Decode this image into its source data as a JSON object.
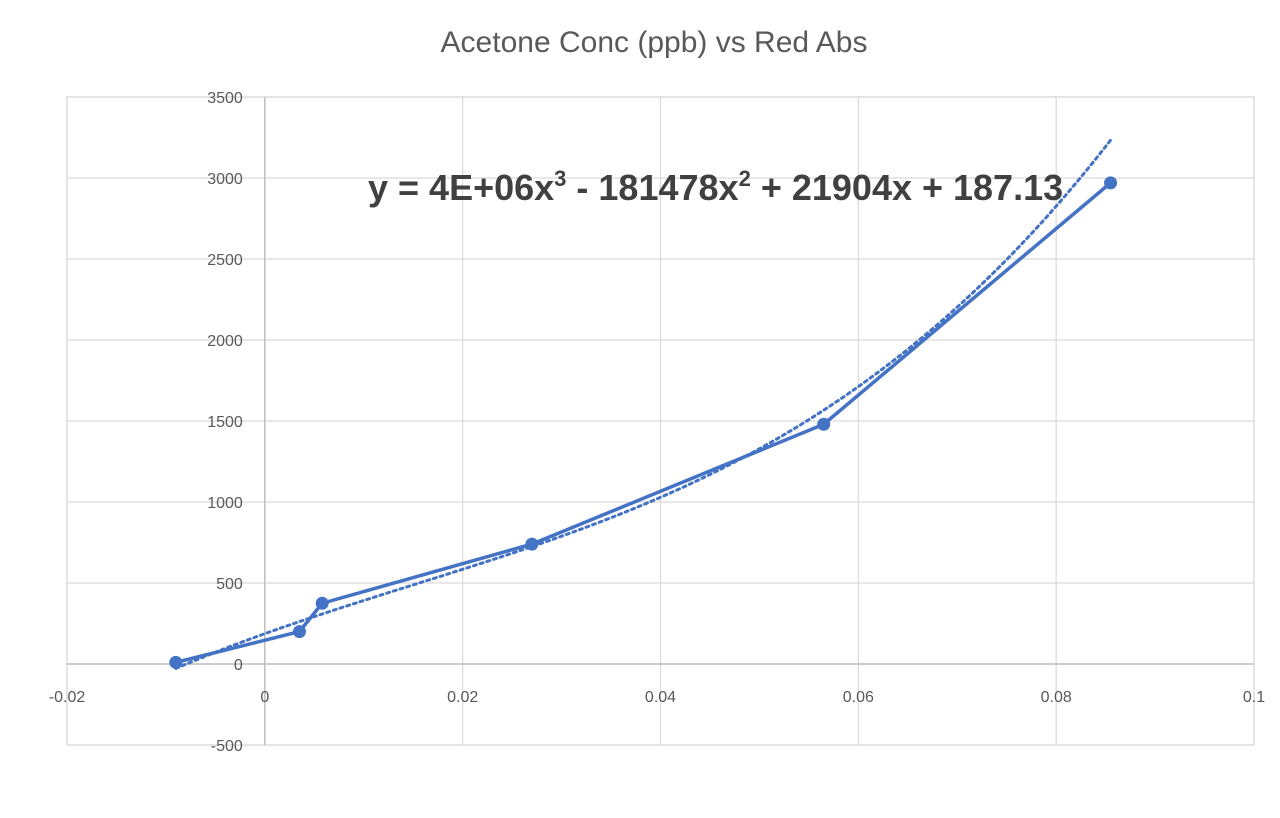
{
  "chart_data": {
    "type": "scatter",
    "title": "Acetone Conc (ppb) vs Red Abs",
    "xlabel": "",
    "ylabel": "",
    "xlim": [
      -0.02,
      0.1
    ],
    "ylim": [
      -500,
      3500
    ],
    "x_ticks": [
      -0.02,
      0,
      0.02,
      0.04,
      0.06,
      0.08,
      0.1
    ],
    "x_tick_labels": [
      "-0.02",
      "0",
      "0.02",
      "0.04",
      "0.06",
      "0.08",
      "0.1"
    ],
    "y_ticks": [
      -500,
      0,
      500,
      1000,
      1500,
      2000,
      2500,
      3000,
      3500
    ],
    "y_tick_labels": [
      "-500",
      "0",
      "500",
      "1000",
      "1500",
      "2000",
      "2500",
      "3000",
      "3500"
    ],
    "grid": true,
    "series": [
      {
        "marker": "circle",
        "line": "solid",
        "color": "#4472c4",
        "x": [
          -0.009,
          0.0035,
          0.0058,
          0.027,
          0.0565,
          0.0855
        ],
        "y": [
          10,
          200,
          375,
          740,
          1480,
          2970
        ]
      }
    ],
    "trendline": {
      "kind": "polynomial",
      "order": 3,
      "style": "dotted",
      "color": "#4472c4",
      "coefficients": {
        "a3": 4000000,
        "a2": -181478,
        "a1": 21904,
        "a0": 187.13
      },
      "equation": {
        "lead": "y = 4E+06x",
        "exp3": "3",
        "mid": " - 181478x",
        "exp2": "2",
        "tail": " + 21904x + 187.13"
      }
    }
  }
}
